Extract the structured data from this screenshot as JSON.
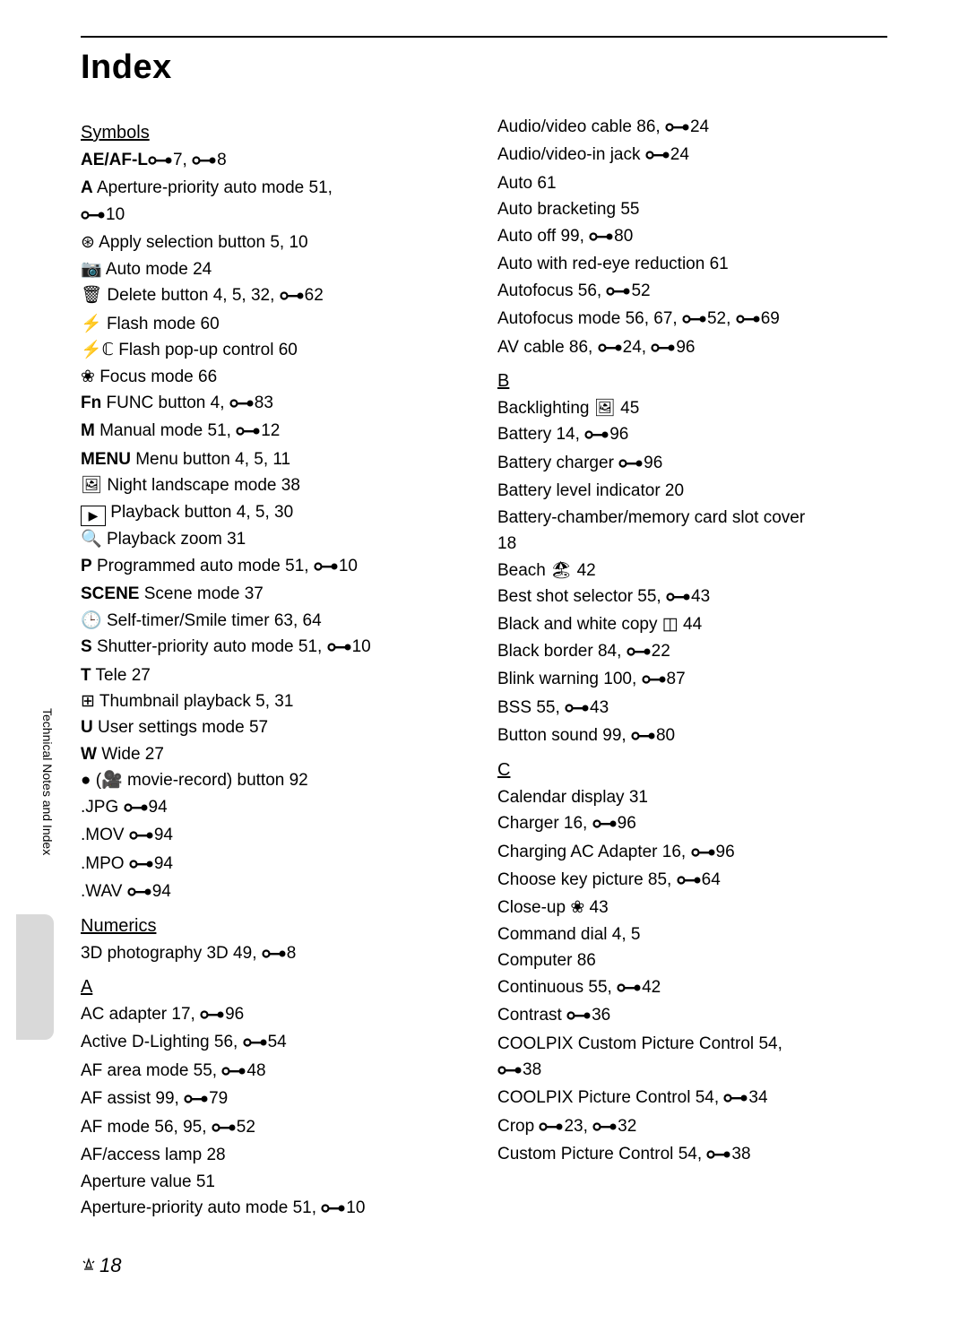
{
  "title": "Index",
  "sidebar_label": "Technical Notes and Index",
  "page_number": "18",
  "ref_icon_color": "#000000",
  "left_col": {
    "symbols_head": "Symbols",
    "symbols": [
      {
        "sym": "AE/AF-L",
        "sym_style": "outline",
        "refs": [
          "7",
          "8"
        ]
      },
      {
        "sym": "A",
        "sym_style": "bold",
        "text": " Aperture-priority auto mode ",
        "pages": "51,",
        "refs_next_line": [
          "10"
        ]
      },
      {
        "sym": "⊛",
        "text": " Apply selection button ",
        "pages": "5, 10"
      },
      {
        "sym": "📷",
        "text": " Auto mode ",
        "pages": "24"
      },
      {
        "sym": "🗑",
        "text": " Delete button ",
        "pages": "4, 5, 32, ",
        "refs": [
          "62"
        ]
      },
      {
        "sym": "⚡",
        "text": " Flash mode ",
        "pages": "60"
      },
      {
        "sym": "⚡ℂ",
        "text": " Flash pop-up control ",
        "pages": "60"
      },
      {
        "sym": "❀",
        "text": " Focus mode ",
        "pages": "66"
      },
      {
        "sym": "Fn",
        "sym_style": "sans",
        "text": " FUNC button ",
        "pages": "4, ",
        "refs": [
          "83"
        ]
      },
      {
        "sym": "M",
        "sym_style": "bold",
        "text": " Manual mode ",
        "pages": "51, ",
        "refs": [
          "12"
        ]
      },
      {
        "sym": "MENU",
        "sym_style": "sans",
        "text": " Menu button ",
        "pages": "4, 5, 11"
      },
      {
        "sym": "🖼",
        "text": " Night landscape mode ",
        "pages": "38"
      },
      {
        "sym": "▶",
        "sym_style": "box",
        "text": " Playback button ",
        "pages": "4, 5, 30"
      },
      {
        "sym": "🔍",
        "text": " Playback zoom ",
        "pages": "31"
      },
      {
        "sym": "P",
        "sym_style": "bold",
        "text": " Programmed auto mode ",
        "pages": "51, ",
        "refs": [
          "10"
        ]
      },
      {
        "sym": "SCENE",
        "sym_style": "sans",
        "text": " Scene mode ",
        "pages": "37"
      },
      {
        "sym": "🕒",
        "text": " Self-timer/Smile timer ",
        "pages": "63, 64"
      },
      {
        "sym": "S",
        "sym_style": "bold",
        "text": " Shutter-priority auto mode ",
        "pages": "51, ",
        "refs": [
          "10"
        ]
      },
      {
        "sym": "T",
        "sym_style": "bold",
        "text": " Tele ",
        "pages": "27"
      },
      {
        "sym": "⊞",
        "text": " Thumbnail playback ",
        "pages": "5, 31"
      },
      {
        "sym": "U",
        "sym_style": "bold",
        "text": " User settings mode ",
        "pages": "57"
      },
      {
        "sym": "W",
        "sym_style": "bold",
        "text": " Wide ",
        "pages": "27"
      },
      {
        "sym": "●",
        "text": " (🎥 movie-record) button ",
        "pages": "92"
      },
      {
        "text": ".JPG ",
        "refs": [
          "94"
        ]
      },
      {
        "text": ".MOV ",
        "refs": [
          "94"
        ]
      },
      {
        "text": ".MPO ",
        "refs": [
          "94"
        ]
      },
      {
        "text": ".WAV ",
        "refs": [
          "94"
        ]
      }
    ],
    "numerics_head": "Numerics",
    "numerics": [
      {
        "text": "3D photography 3D  49, ",
        "refs": [
          "8"
        ]
      }
    ],
    "a_head": "A",
    "a_entries": [
      {
        "text": "AC adapter ",
        "pages": "17, ",
        "refs": [
          "96"
        ]
      },
      {
        "text": "Active D-Lighting ",
        "pages": "56, ",
        "refs": [
          "54"
        ]
      },
      {
        "text": "AF area mode ",
        "pages": "55, ",
        "refs": [
          "48"
        ]
      },
      {
        "text": "AF assist ",
        "pages": "99, ",
        "refs": [
          "79"
        ]
      },
      {
        "text": "AF mode ",
        "pages": "56, 95, ",
        "refs": [
          "52"
        ]
      },
      {
        "text": "AF/access lamp ",
        "pages": "28"
      },
      {
        "text": "Aperture value ",
        "pages": "51"
      },
      {
        "text": "Aperture-priority auto mode ",
        "pages": "51, ",
        "refs": [
          "10"
        ]
      }
    ]
  },
  "right_col": {
    "a_cont": [
      {
        "text": "Audio/video cable ",
        "pages": "86, ",
        "refs": [
          "24"
        ]
      },
      {
        "text": "Audio/video-in jack ",
        "refs": [
          "24"
        ]
      },
      {
        "text": "Auto ",
        "pages": "61"
      },
      {
        "text": "Auto bracketing ",
        "pages": "55"
      },
      {
        "text": "Auto off ",
        "pages": "99, ",
        "refs": [
          "80"
        ]
      },
      {
        "text": "Auto with red-eye reduction ",
        "pages": "61"
      },
      {
        "text": "Autofocus ",
        "pages": "56, ",
        "refs": [
          "52"
        ]
      },
      {
        "text": "Autofocus mode ",
        "pages": "56, 67, ",
        "refs": [
          "52",
          "69"
        ]
      },
      {
        "text": "AV cable ",
        "pages": "86, ",
        "refs": [
          "24",
          "96"
        ]
      }
    ],
    "b_head": "B",
    "b_entries": [
      {
        "text": "Backlighting 🖼  ",
        "pages": "45"
      },
      {
        "text": "Battery ",
        "pages": "14, ",
        "refs": [
          "96"
        ]
      },
      {
        "text": "Battery charger ",
        "refs": [
          "96"
        ]
      },
      {
        "text": "Battery level indicator ",
        "pages": "20"
      },
      {
        "text": "Battery-chamber/memory card slot cover",
        "next_line_pages": "18"
      },
      {
        "text": "Beach 🏖  ",
        "pages": "42"
      },
      {
        "text": "Best shot selector ",
        "pages": "55, ",
        "refs": [
          "43"
        ]
      },
      {
        "text": "Black and white copy ◫  ",
        "pages": "44"
      },
      {
        "text": "Black border ",
        "pages": "84, ",
        "refs": [
          "22"
        ]
      },
      {
        "text": "Blink warning ",
        "pages": "100, ",
        "refs": [
          "87"
        ]
      },
      {
        "text": "BSS ",
        "pages": "55, ",
        "refs": [
          "43"
        ]
      },
      {
        "text": "Button sound ",
        "pages": "99, ",
        "refs": [
          "80"
        ]
      }
    ],
    "c_head": "C",
    "c_entries": [
      {
        "text": "Calendar display ",
        "pages": "31"
      },
      {
        "text": "Charger ",
        "pages": "16, ",
        "refs": [
          "96"
        ]
      },
      {
        "text": "Charging AC Adapter ",
        "pages": "16, ",
        "refs": [
          "96"
        ]
      },
      {
        "text": "Choose key picture ",
        "pages": "85, ",
        "refs": [
          "64"
        ]
      },
      {
        "text": "Close-up ❀  ",
        "pages": "43"
      },
      {
        "text": "Command dial ",
        "pages": "4, 5"
      },
      {
        "text": "Computer ",
        "pages": "86"
      },
      {
        "text": "Continuous ",
        "pages": "55, ",
        "refs": [
          "42"
        ]
      },
      {
        "text": "Contrast ",
        "refs": [
          "36"
        ]
      },
      {
        "text": "COOLPIX Custom Picture Control ",
        "pages": "54,",
        "refs_next_line": [
          "38"
        ]
      },
      {
        "text": "COOLPIX Picture Control ",
        "pages": "54, ",
        "refs": [
          "34"
        ]
      },
      {
        "text": "Crop ",
        "refs": [
          "23",
          "32"
        ]
      },
      {
        "text": "Custom Picture Control ",
        "pages": "54, ",
        "refs": [
          "38"
        ]
      }
    ]
  }
}
